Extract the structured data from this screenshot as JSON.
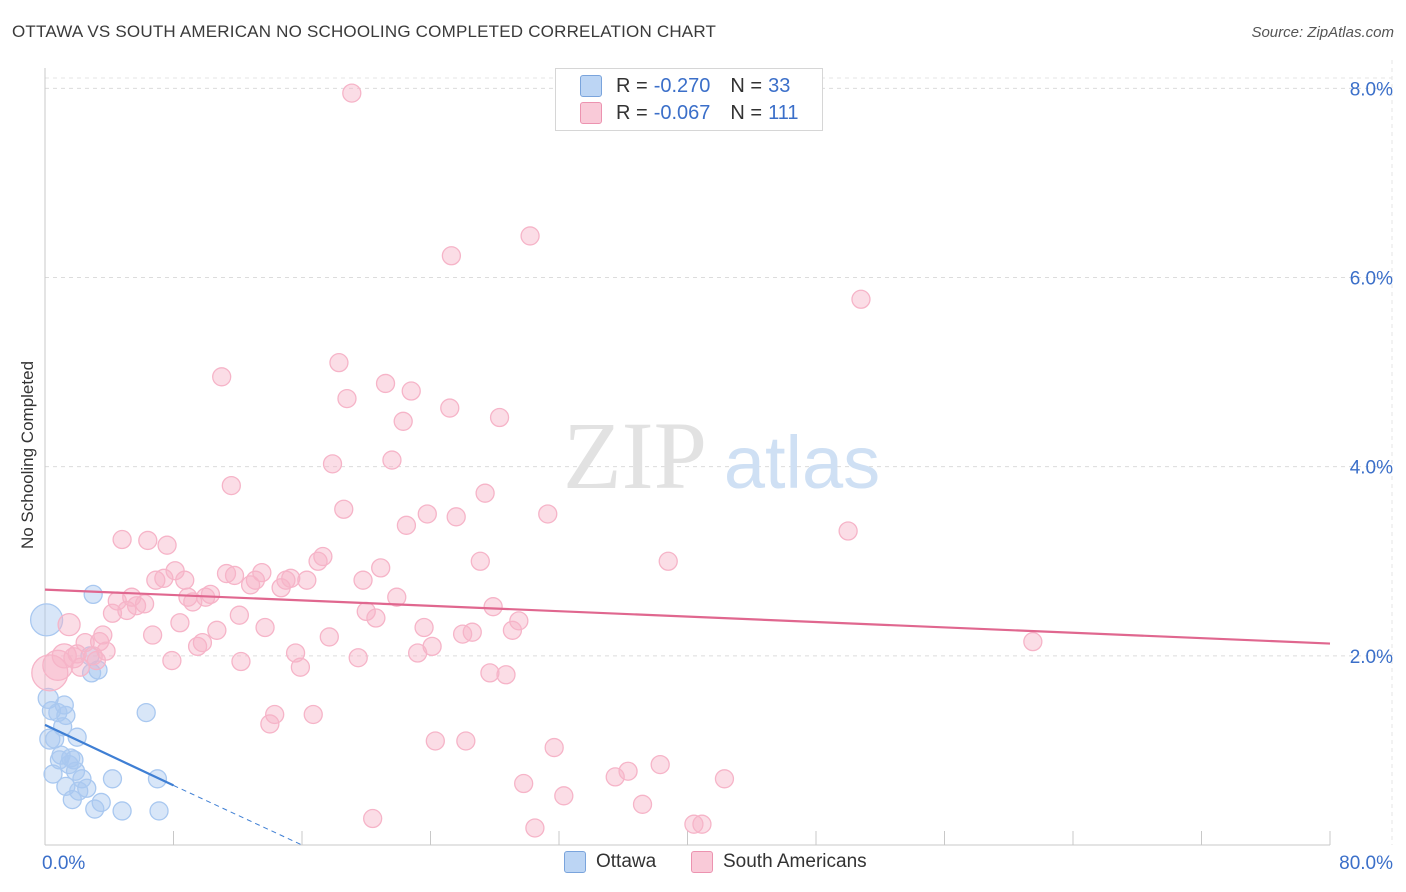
{
  "header": {
    "title": "OTTAWA VS SOUTH AMERICAN NO SCHOOLING COMPLETED CORRELATION CHART",
    "source": "Source: ZipAtlas.com"
  },
  "watermark": {
    "zip": "ZIP",
    "atlas": "atlas"
  },
  "legend": {
    "rows": [
      {
        "r_label": "R =",
        "r_value": "-0.270",
        "n_label": "N =",
        "n_value": "33",
        "color": "#a9c8f0"
      },
      {
        "r_label": "R =",
        "r_value": "-0.067",
        "n_label": "N =",
        "n_value": "111",
        "color": "#f6b4c8"
      }
    ]
  },
  "bottom_legend": [
    {
      "label": "Ottawa",
      "color": "#a9c8f0"
    },
    {
      "label": "South Americans",
      "color": "#f6b4c8"
    }
  ],
  "chart_data": {
    "type": "scatter",
    "title": "OTTAWA VS SOUTH AMERICAN NO SCHOOLING COMPLETED CORRELATION CHART",
    "xlabel": "",
    "ylabel": "No Schooling Completed",
    "xlim": [
      0,
      80
    ],
    "ylim": [
      0,
      8.3
    ],
    "x_tick_labels": [
      "0.0%",
      "80.0%"
    ],
    "y_ticks": [
      2,
      4,
      6,
      8
    ],
    "y_tick_labels": [
      "2.0%",
      "4.0%",
      "6.0%",
      "8.0%"
    ],
    "grid": true,
    "legend_position": "top-center",
    "series": [
      {
        "name": "Ottawa",
        "color": "#3f7fd4",
        "fill": "#a9c8f0",
        "trend": {
          "x": [
            0,
            8
          ],
          "y": [
            1.27,
            0.63
          ],
          "dashed_to": [
            16,
            0
          ]
        },
        "points": [
          [
            0.1,
            2.38,
            16
          ],
          [
            0.2,
            1.55,
            10
          ],
          [
            0.3,
            1.12,
            10
          ],
          [
            0.4,
            1.42,
            9
          ],
          [
            0.5,
            0.75,
            9
          ],
          [
            0.6,
            1.12,
            9
          ],
          [
            0.8,
            1.4,
            9
          ],
          [
            1.0,
            0.95,
            9
          ],
          [
            1.1,
            1.25,
            9
          ],
          [
            1.2,
            1.48,
            9
          ],
          [
            1.3,
            0.62,
            9
          ],
          [
            1.3,
            1.37,
            9
          ],
          [
            1.5,
            0.85,
            9
          ],
          [
            1.6,
            0.92,
            9
          ],
          [
            1.7,
            0.48,
            9
          ],
          [
            1.8,
            0.9,
            9
          ],
          [
            1.9,
            0.78,
            9
          ],
          [
            2.0,
            1.14,
            9
          ],
          [
            2.1,
            0.57,
            9
          ],
          [
            2.3,
            0.7,
            9
          ],
          [
            2.6,
            0.6,
            9
          ],
          [
            2.8,
            2.0,
            9
          ],
          [
            2.9,
            1.82,
            9
          ],
          [
            3.0,
            2.65,
            9
          ],
          [
            3.1,
            0.38,
            9
          ],
          [
            3.3,
            1.85,
            9
          ],
          [
            3.5,
            0.45,
            9
          ],
          [
            4.2,
            0.7,
            9
          ],
          [
            4.8,
            0.36,
            9
          ],
          [
            6.3,
            1.4,
            9
          ],
          [
            7.0,
            0.7,
            9
          ],
          [
            7.1,
            0.36,
            9
          ],
          [
            0.9,
            0.9,
            9
          ]
        ]
      },
      {
        "name": "South Americans",
        "color": "#e0678f",
        "fill": "#f6b4c8",
        "trend": {
          "x": [
            0,
            80
          ],
          "y": [
            2.7,
            2.13
          ]
        },
        "points": [
          [
            0.3,
            1.82,
            18
          ],
          [
            0.8,
            1.9,
            15
          ],
          [
            1.2,
            2.0,
            12
          ],
          [
            1.5,
            2.33,
            11
          ],
          [
            1.8,
            1.98,
            10
          ],
          [
            2.0,
            2.02,
            9
          ],
          [
            2.2,
            1.88,
            9
          ],
          [
            2.5,
            2.14,
            9
          ],
          [
            3.0,
            2.0,
            9
          ],
          [
            3.2,
            1.95,
            9
          ],
          [
            3.4,
            2.15,
            9
          ],
          [
            3.6,
            2.22,
            9
          ],
          [
            3.8,
            2.05,
            9
          ],
          [
            4.2,
            2.45,
            9
          ],
          [
            4.5,
            2.58,
            9
          ],
          [
            4.8,
            3.23,
            9
          ],
          [
            5.1,
            2.48,
            9
          ],
          [
            5.4,
            2.62,
            9
          ],
          [
            5.7,
            2.53,
            9
          ],
          [
            6.2,
            2.55,
            9
          ],
          [
            6.4,
            3.22,
            9
          ],
          [
            6.7,
            2.22,
            9
          ],
          [
            6.9,
            2.8,
            9
          ],
          [
            7.4,
            2.82,
            9
          ],
          [
            7.6,
            3.17,
            9
          ],
          [
            7.9,
            1.95,
            9
          ],
          [
            8.1,
            2.9,
            9
          ],
          [
            8.4,
            2.35,
            9
          ],
          [
            8.7,
            2.8,
            9
          ],
          [
            8.9,
            2.62,
            9
          ],
          [
            9.2,
            2.57,
            9
          ],
          [
            9.5,
            2.1,
            9
          ],
          [
            9.8,
            2.14,
            9
          ],
          [
            10.0,
            2.62,
            9
          ],
          [
            10.3,
            2.65,
            9
          ],
          [
            10.7,
            2.27,
            9
          ],
          [
            11.0,
            4.95,
            9
          ],
          [
            11.3,
            2.87,
            9
          ],
          [
            11.6,
            3.8,
            9
          ],
          [
            11.8,
            2.85,
            9
          ],
          [
            12.1,
            2.43,
            9
          ],
          [
            12.2,
            1.94,
            9
          ],
          [
            12.8,
            2.75,
            9
          ],
          [
            13.1,
            2.8,
            9
          ],
          [
            13.5,
            2.88,
            9
          ],
          [
            13.7,
            2.3,
            9
          ],
          [
            14.0,
            1.28,
            9
          ],
          [
            14.3,
            1.38,
            9
          ],
          [
            14.7,
            2.72,
            9
          ],
          [
            15.0,
            2.8,
            9
          ],
          [
            15.3,
            2.82,
            9
          ],
          [
            15.6,
            2.03,
            9
          ],
          [
            15.9,
            1.88,
            9
          ],
          [
            16.3,
            2.8,
            9
          ],
          [
            16.7,
            1.38,
            9
          ],
          [
            17.0,
            3.0,
            9
          ],
          [
            17.3,
            3.05,
            9
          ],
          [
            17.7,
            2.2,
            9
          ],
          [
            17.9,
            4.03,
            9
          ],
          [
            18.3,
            5.1,
            9
          ],
          [
            18.6,
            3.55,
            9
          ],
          [
            18.8,
            4.72,
            9
          ],
          [
            19.1,
            7.95,
            9
          ],
          [
            19.5,
            1.98,
            9
          ],
          [
            19.8,
            2.8,
            9
          ],
          [
            20.0,
            2.47,
            9
          ],
          [
            20.4,
            0.28,
            9
          ],
          [
            20.6,
            2.4,
            9
          ],
          [
            20.9,
            2.93,
            9
          ],
          [
            21.2,
            4.88,
            9
          ],
          [
            21.6,
            4.07,
            9
          ],
          [
            21.9,
            2.62,
            9
          ],
          [
            22.3,
            4.48,
            9
          ],
          [
            22.5,
            3.38,
            9
          ],
          [
            22.8,
            4.8,
            9
          ],
          [
            23.2,
            2.03,
            9
          ],
          [
            23.6,
            2.3,
            9
          ],
          [
            23.8,
            3.5,
            9
          ],
          [
            24.1,
            2.1,
            9
          ],
          [
            24.3,
            1.1,
            9
          ],
          [
            25.2,
            4.62,
            9
          ],
          [
            25.3,
            6.23,
            9
          ],
          [
            25.6,
            3.47,
            9
          ],
          [
            26.0,
            2.23,
            9
          ],
          [
            26.2,
            1.1,
            9
          ],
          [
            26.6,
            2.25,
            9
          ],
          [
            27.1,
            3.0,
            9
          ],
          [
            27.4,
            3.72,
            9
          ],
          [
            27.7,
            1.82,
            9
          ],
          [
            27.9,
            2.52,
            9
          ],
          [
            28.3,
            4.52,
            9
          ],
          [
            28.7,
            1.8,
            9
          ],
          [
            29.1,
            2.27,
            9
          ],
          [
            29.5,
            2.37,
            9
          ],
          [
            29.8,
            0.65,
            9
          ],
          [
            30.2,
            6.44,
            9
          ],
          [
            30.5,
            0.18,
            9
          ],
          [
            31.3,
            3.5,
            9
          ],
          [
            31.7,
            1.03,
            9
          ],
          [
            32.3,
            0.52,
            9
          ],
          [
            35.5,
            0.72,
            9
          ],
          [
            36.3,
            0.78,
            9
          ],
          [
            37.2,
            0.43,
            9
          ],
          [
            38.3,
            0.85,
            9
          ],
          [
            38.8,
            3.0,
            9
          ],
          [
            40.4,
            0.22,
            9
          ],
          [
            40.9,
            0.22,
            9
          ],
          [
            42.3,
            0.7,
            9
          ],
          [
            50.0,
            3.32,
            9
          ],
          [
            50.8,
            5.77,
            9
          ],
          [
            61.5,
            2.15,
            9
          ]
        ]
      }
    ]
  }
}
